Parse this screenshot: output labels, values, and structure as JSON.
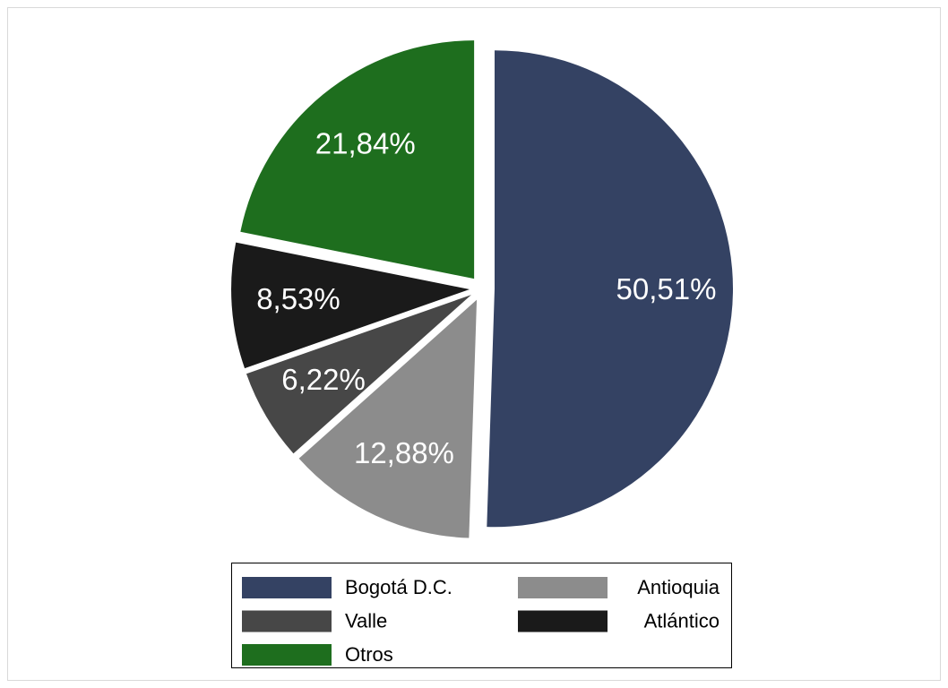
{
  "chart_data": {
    "type": "pie",
    "categories": [
      "Bogotá D.C.",
      "Antioquia",
      "Valle",
      "Atlántico",
      "Otros"
    ],
    "values": [
      50.51,
      12.88,
      6.22,
      8.53,
      21.84
    ],
    "value_labels": [
      "50,51%",
      "12,88%",
      "6,22%",
      "8,53%",
      "21,84%"
    ],
    "colors": [
      "#344263",
      "#8c8c8c",
      "#474747",
      "#1a1a1a",
      "#1e6e1e"
    ],
    "legend": "bottom"
  }
}
